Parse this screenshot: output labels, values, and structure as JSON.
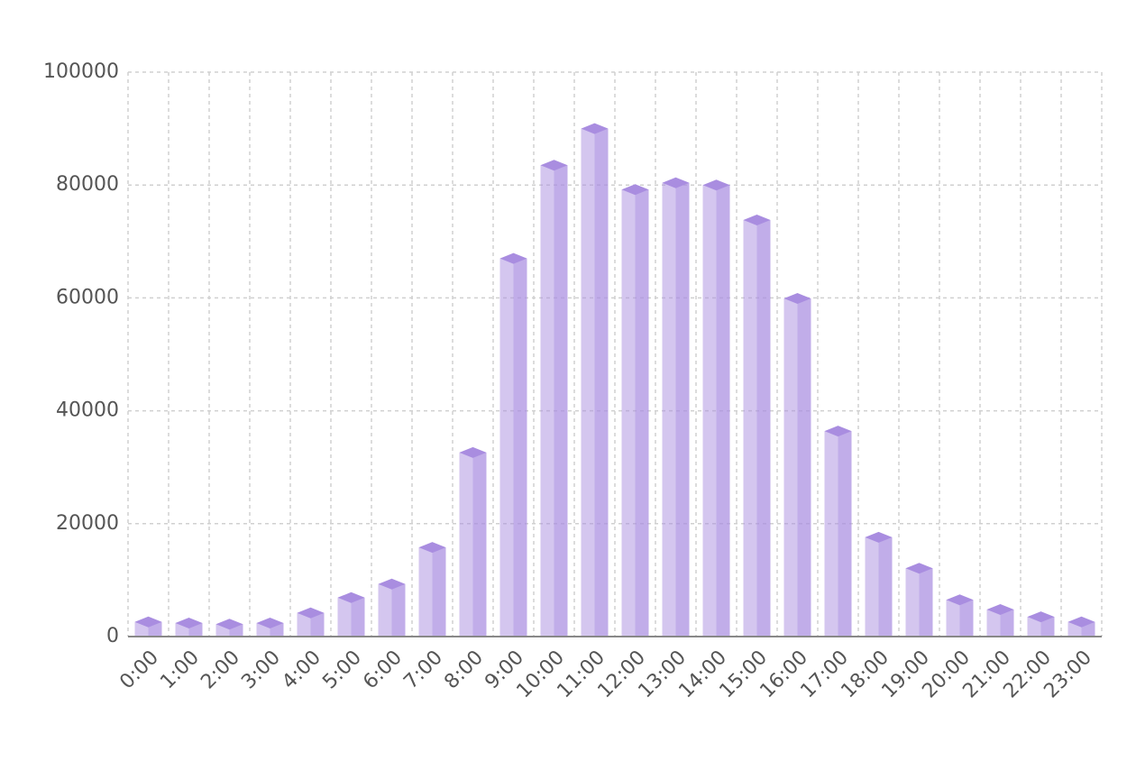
{
  "chart_data": {
    "type": "bar",
    "categories": [
      "0:00",
      "1:00",
      "2:00",
      "3:00",
      "4:00",
      "5:00",
      "6:00",
      "7:00",
      "8:00",
      "9:00",
      "10:00",
      "11:00",
      "12:00",
      "13:00",
      "14:00",
      "15:00",
      "16:00",
      "17:00",
      "18:00",
      "19:00",
      "20:00",
      "21:00",
      "22:00",
      "23:00"
    ],
    "values": [
      2600,
      2400,
      2200,
      2400,
      4200,
      6900,
      9300,
      15800,
      32600,
      67000,
      83500,
      90000,
      79200,
      80400,
      80000,
      73800,
      59900,
      36400,
      17600,
      12100,
      6500,
      4800,
      3500,
      2600
    ],
    "color": "#a98de0",
    "ylim": [
      0,
      100000
    ],
    "yticks": [
      0,
      20000,
      40000,
      60000,
      80000,
      100000
    ],
    "grid": true
  }
}
